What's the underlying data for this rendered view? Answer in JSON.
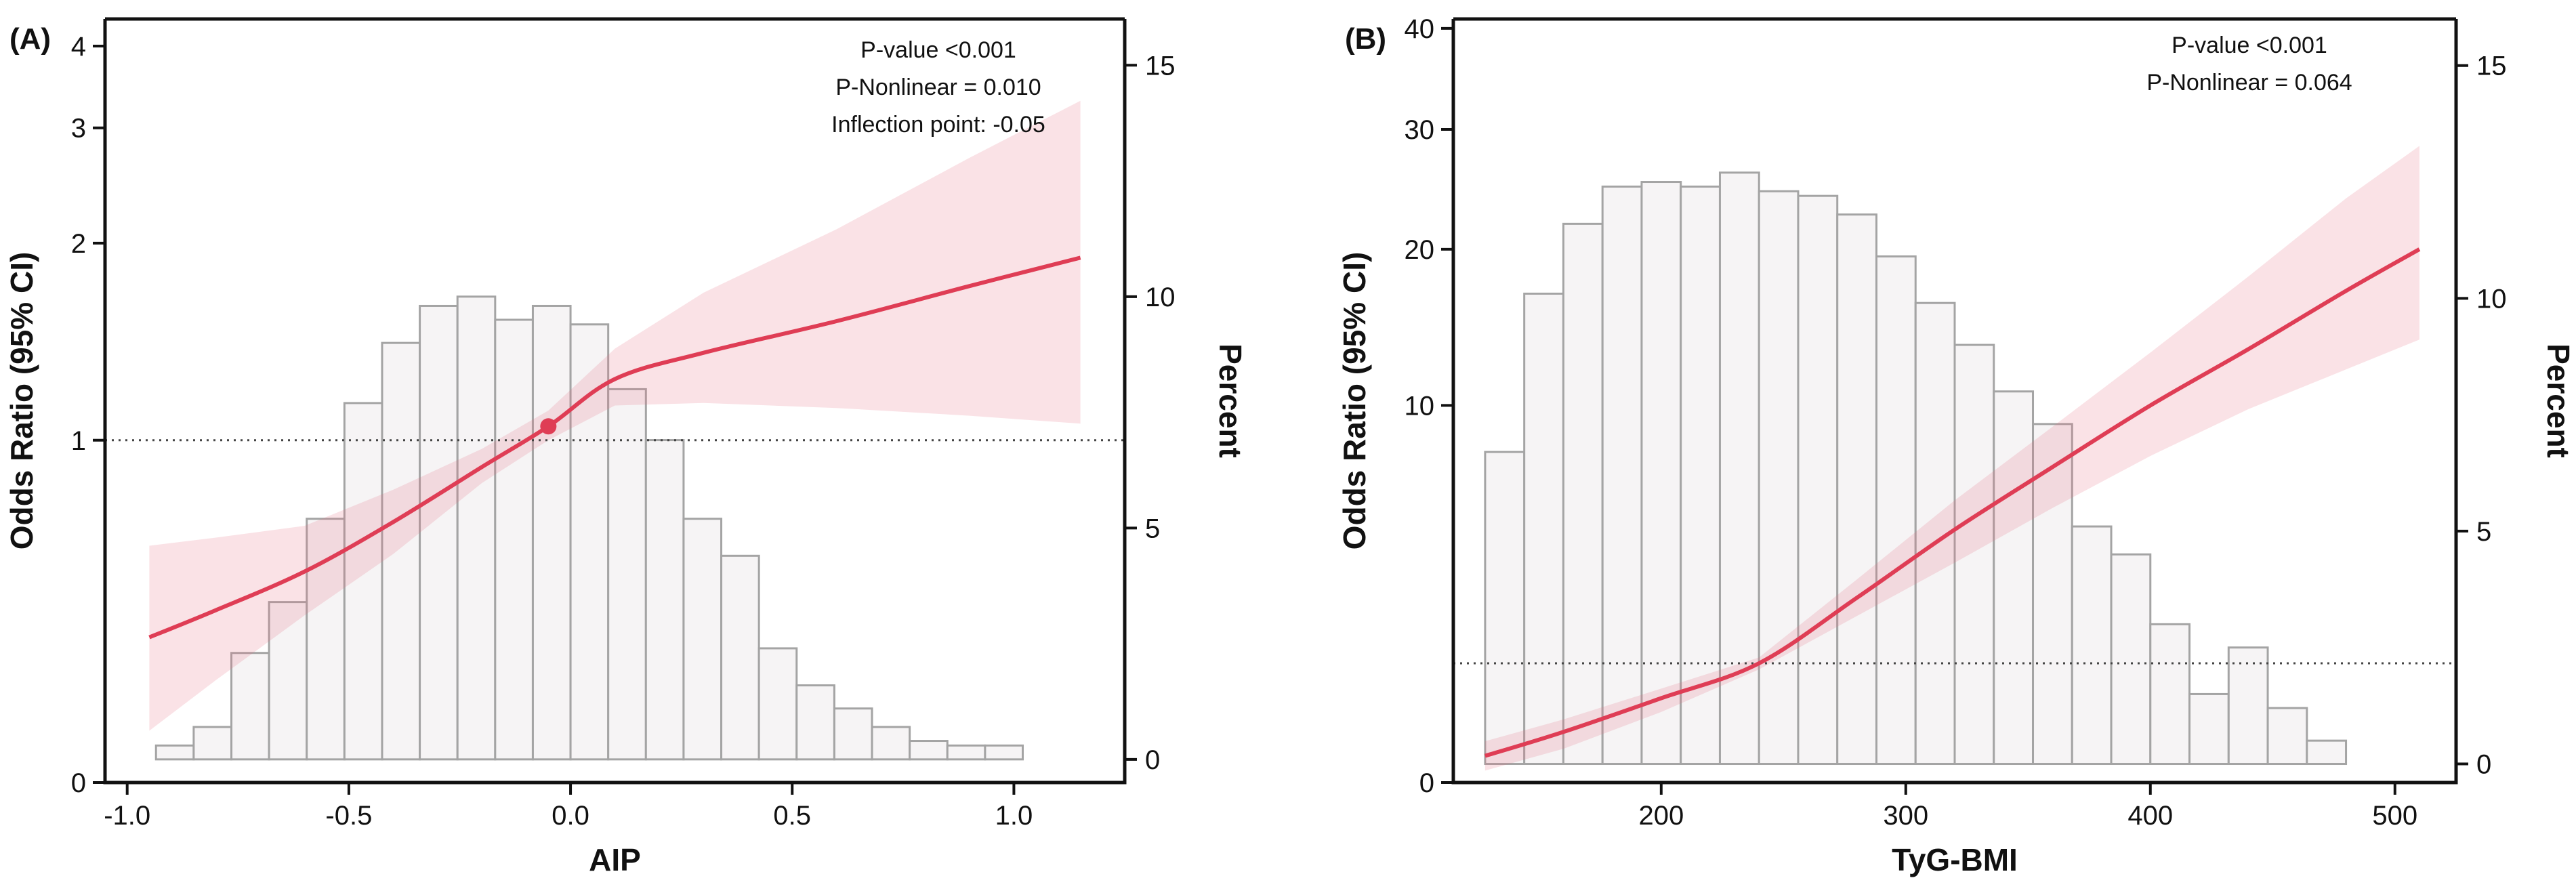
{
  "chart_data": [
    {
      "panel_label": "(A)",
      "type": "line",
      "xlabel": "AIP",
      "ylabel": "Odds Ratio (95% CI)",
      "y2label": "Percent",
      "xlim": [
        -1.05,
        1.25
      ],
      "xticks": [
        -1.0,
        -0.5,
        0.0,
        0.5,
        1.0
      ],
      "xtick_labels": [
        "-1.0",
        "-0.5",
        "0.0",
        "0.5",
        "1.0"
      ],
      "y_scale": "log",
      "ylim": [
        0.3,
        4.4
      ],
      "yticks": [
        0.3,
        1,
        2,
        3,
        4
      ],
      "ytick_labels": [
        "0",
        "1",
        "2",
        "3",
        "4"
      ],
      "y2lim": [
        -0.5,
        16
      ],
      "y2ticks": [
        0,
        5,
        10,
        15
      ],
      "y2tick_labels": [
        "0",
        "5",
        "10",
        "15"
      ],
      "reference_line": 1,
      "annotations": [
        "P-value  <0.001",
        "P-Nonlinear = 0.010",
        "Inflection point: -0.05"
      ],
      "point": {
        "x": -0.05,
        "y": 1.05
      },
      "histogram": {
        "bin_start": -0.935,
        "bin_width": 0.085,
        "percent": [
          0.3,
          0.7,
          2.3,
          3.4,
          5.2,
          7.7,
          9.0,
          9.8,
          10.0,
          9.5,
          9.8,
          9.4,
          8.0,
          6.9,
          5.2,
          4.4,
          2.4,
          1.6,
          1.1,
          0.7,
          0.4,
          0.3,
          0.3
        ]
      },
      "curve": {
        "x": [
          -0.95,
          -0.8,
          -0.6,
          -0.4,
          -0.2,
          -0.05,
          0.1,
          0.3,
          0.6,
          0.9,
          1.15
        ],
        "or": [
          0.5,
          0.55,
          0.63,
          0.75,
          0.91,
          1.05,
          1.24,
          1.36,
          1.52,
          1.72,
          1.9
        ],
        "lower": [
          0.36,
          0.43,
          0.54,
          0.67,
          0.86,
          1.0,
          1.13,
          1.14,
          1.12,
          1.09,
          1.06
        ],
        "upper": [
          0.69,
          0.71,
          0.74,
          0.84,
          0.97,
          1.11,
          1.38,
          1.68,
          2.1,
          2.7,
          3.3
        ]
      }
    },
    {
      "panel_label": "(B)",
      "type": "line",
      "xlabel": "TyG-BMI",
      "ylabel": "Odds Ratio (95% CI)",
      "y2label": "Percent",
      "xlim": [
        115,
        525
      ],
      "xticks": [
        200,
        300,
        400,
        500
      ],
      "xtick_labels": [
        "200",
        "300",
        "400",
        "500"
      ],
      "y_scale": "sqrt",
      "ylim": [
        0,
        41
      ],
      "yticks": [
        0,
        10,
        20,
        30,
        40
      ],
      "ytick_labels": [
        "0",
        "10",
        "20",
        "30",
        "40"
      ],
      "y2lim": [
        -0.4,
        16
      ],
      "y2ticks": [
        0,
        5,
        10,
        15
      ],
      "y2tick_labels": [
        "0",
        "5",
        "10",
        "15"
      ],
      "reference_line": 1,
      "annotations": [
        "P-value <0.001",
        "P-Nonlinear = 0.064"
      ],
      "histogram": {
        "bin_start": 128,
        "bin_width": 16,
        "percent": [
          6.7,
          10.1,
          11.6,
          12.4,
          12.5,
          12.4,
          12.7,
          12.3,
          12.2,
          11.8,
          10.9,
          9.9,
          9.0,
          8.0,
          7.3,
          5.1,
          4.5,
          3.0,
          1.5,
          2.5,
          1.2,
          0.5
        ]
      },
      "curve": {
        "x": [
          128,
          160,
          200,
          240,
          280,
          320,
          360,
          400,
          440,
          480,
          510
        ],
        "or": [
          0.05,
          0.18,
          0.5,
          1.0,
          2.4,
          4.5,
          7.0,
          10.0,
          13.2,
          17.0,
          20.0
        ],
        "lower": [
          0.01,
          0.08,
          0.35,
          0.9,
          1.95,
          3.4,
          5.3,
          7.5,
          9.8,
          12.0,
          13.8
        ],
        "upper": [
          0.12,
          0.28,
          0.62,
          1.1,
          2.9,
          5.6,
          8.9,
          13.0,
          18.0,
          24.0,
          28.5
        ]
      }
    }
  ]
}
